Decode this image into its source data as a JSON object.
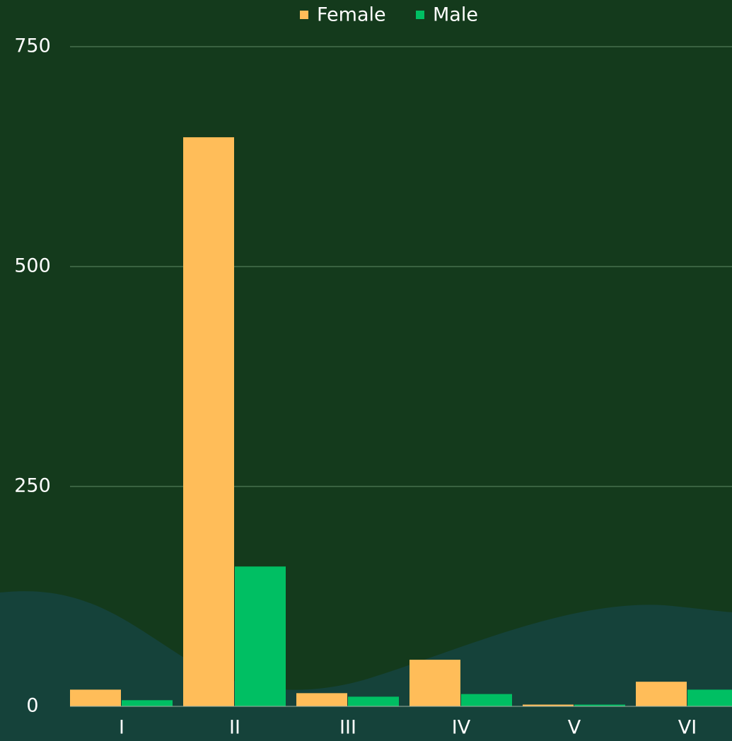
{
  "chart_data": {
    "type": "bar",
    "categories": [
      "I",
      "II",
      "III",
      "IV",
      "V",
      "VI"
    ],
    "series": [
      {
        "name": "Female",
        "color": "#ffbd59",
        "values": [
          19,
          647,
          15,
          53,
          2,
          28
        ]
      },
      {
        "name": "Male",
        "color": "#00bf63",
        "values": [
          7,
          159,
          11,
          14,
          2,
          19
        ]
      }
    ],
    "ylim": [
      0,
      750
    ],
    "yticks": [
      0,
      250,
      500,
      750
    ],
    "grid": true,
    "legend": "top"
  }
}
